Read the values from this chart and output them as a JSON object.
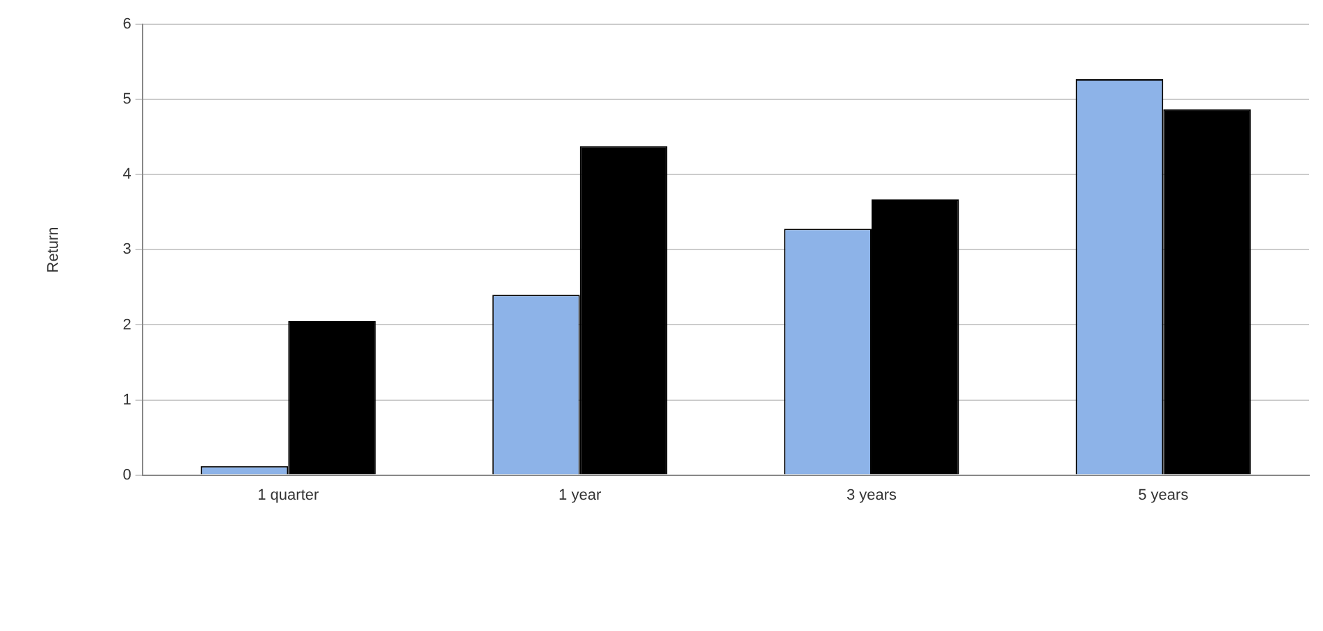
{
  "chart_data": {
    "type": "bar",
    "ylabel": "Return",
    "categories": [
      "1 quarter",
      "1 year",
      "3 years",
      "5 years"
    ],
    "series": [
      {
        "color": "#8db3e8",
        "values": [
          0.12,
          2.4,
          3.28,
          5.27
        ]
      },
      {
        "color": "#000000",
        "values": [
          2.05,
          4.38,
          3.67,
          4.87
        ]
      }
    ],
    "ylim": [
      0,
      6
    ],
    "yticks": [
      0,
      1,
      2,
      3,
      4,
      5,
      6
    ],
    "grid": "y"
  }
}
